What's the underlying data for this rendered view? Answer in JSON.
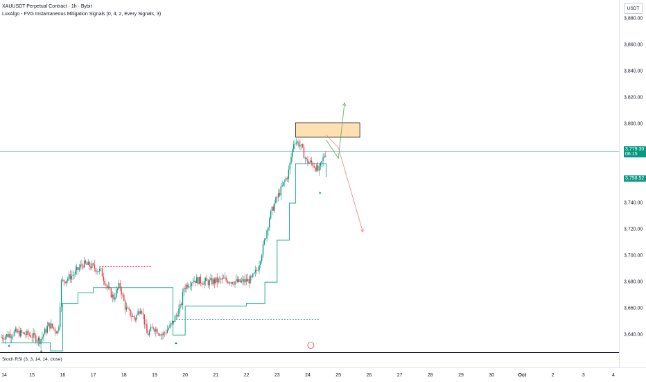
{
  "legend": {
    "symbol": "XAUUSDT Perpetual Contract · 1h · Bybit",
    "indicator": "LuxAlgo - FVG Instantaneous Mitigation Signals (0, 4, 2, Every Signals, 3)"
  },
  "currency": "USDT",
  "price_axis": {
    "labels": [
      {
        "text": "3,880.00",
        "value": 3880
      },
      {
        "text": "3,860.00",
        "value": 3860
      },
      {
        "text": "3,840.00",
        "value": 3840
      },
      {
        "text": "3,820.00",
        "value": 3820
      },
      {
        "text": "3,800.00",
        "value": 3800
      },
      {
        "text": "3,740.00",
        "value": 3740
      },
      {
        "text": "3,720.00",
        "value": 3720
      },
      {
        "text": "3,700.00",
        "value": 3700
      },
      {
        "text": "3,680.00",
        "value": 3680
      },
      {
        "text": "3,660.00",
        "value": 3660
      },
      {
        "text": "3,640.00",
        "value": 3640
      }
    ]
  },
  "current_price": {
    "price": "3,779.30",
    "countdown": "06:15",
    "value": 3779.3
  },
  "trail_price": {
    "price": "3,758.52",
    "value": 3758.52
  },
  "time_axis": [
    "14",
    "15",
    "16",
    "17",
    "18",
    "19",
    "20",
    "21",
    "22",
    "23",
    "24",
    "25",
    "26",
    "27",
    "28",
    "29",
    "30",
    "Oct",
    "2",
    "3",
    "4"
  ],
  "lower_pane": {
    "label": "Stoch RSI (3, 3, 14, 14, close)"
  },
  "colors": {
    "up": "#089981",
    "down": "#f23645",
    "zone": "#ffe0b2",
    "trail": "#22ab94"
  },
  "chart_data": {
    "type": "candlestick",
    "title": "XAUUSDT Perpetual Contract · 1h · Bybit",
    "xlabel": "",
    "ylabel": "",
    "ylim": [
      3627,
      3893
    ],
    "x_range_days": [
      14,
      34.2
    ],
    "candles_description": "hourly price path",
    "path": [
      {
        "day": 14.0,
        "price": 3638
      },
      {
        "day": 14.5,
        "price": 3642
      },
      {
        "day": 15.0,
        "price": 3640
      },
      {
        "day": 15.3,
        "price": 3636
      },
      {
        "day": 15.6,
        "price": 3648
      },
      {
        "day": 15.9,
        "price": 3642
      },
      {
        "day": 16.0,
        "price": 3680
      },
      {
        "day": 16.4,
        "price": 3686
      },
      {
        "day": 16.7,
        "price": 3694
      },
      {
        "day": 17.0,
        "price": 3692
      },
      {
        "day": 17.3,
        "price": 3688
      },
      {
        "day": 17.5,
        "price": 3676
      },
      {
        "day": 17.7,
        "price": 3668
      },
      {
        "day": 17.9,
        "price": 3678
      },
      {
        "day": 18.1,
        "price": 3660
      },
      {
        "day": 18.4,
        "price": 3652
      },
      {
        "day": 18.6,
        "price": 3662
      },
      {
        "day": 18.8,
        "price": 3640
      },
      {
        "day": 19.0,
        "price": 3646
      },
      {
        "day": 19.3,
        "price": 3640
      },
      {
        "day": 19.6,
        "price": 3648
      },
      {
        "day": 19.9,
        "price": 3662
      },
      {
        "day": 20.0,
        "price": 3676
      },
      {
        "day": 20.3,
        "price": 3682
      },
      {
        "day": 20.8,
        "price": 3680
      },
      {
        "day": 21.3,
        "price": 3682
      },
      {
        "day": 21.8,
        "price": 3680
      },
      {
        "day": 22.2,
        "price": 3682
      },
      {
        "day": 22.4,
        "price": 3690
      },
      {
        "day": 22.6,
        "price": 3708
      },
      {
        "day": 22.8,
        "price": 3730
      },
      {
        "day": 23.0,
        "price": 3742
      },
      {
        "day": 23.2,
        "price": 3752
      },
      {
        "day": 23.4,
        "price": 3762
      },
      {
        "day": 23.6,
        "price": 3788
      },
      {
        "day": 23.8,
        "price": 3784
      },
      {
        "day": 24.0,
        "price": 3772
      },
      {
        "day": 24.2,
        "price": 3770
      },
      {
        "day": 24.4,
        "price": 3764
      },
      {
        "day": 24.6,
        "price": 3778
      }
    ],
    "trailing_stop": [
      {
        "day": 14.0,
        "price": 3634
      },
      {
        "day": 15.3,
        "price": 3634
      },
      {
        "day": 15.6,
        "price": 3628
      },
      {
        "day": 16.0,
        "price": 3664
      },
      {
        "day": 16.5,
        "price": 3672
      },
      {
        "day": 17.0,
        "price": 3676
      },
      {
        "day": 17.6,
        "price": 3676
      },
      {
        "day": 19.6,
        "price": 3640
      },
      {
        "day": 20.0,
        "price": 3662
      },
      {
        "day": 22.0,
        "price": 3664
      },
      {
        "day": 22.6,
        "price": 3680
      },
      {
        "day": 23.0,
        "price": 3712
      },
      {
        "day": 23.4,
        "price": 3740
      },
      {
        "day": 23.6,
        "price": 3770
      },
      {
        "day": 24.6,
        "price": 3760
      }
    ],
    "supply_zone": {
      "day_start": 23.6,
      "day_end": 25.7,
      "price_low": 3790,
      "price_high": 3801
    },
    "red_dotted_level": {
      "day_start": 17.2,
      "day_end": 18.9,
      "price": 3692
    },
    "green_dotted_level": {
      "day_start": 19.7,
      "day_end": 24.4,
      "price": 3652
    },
    "horizontal_price_line": {
      "price": 3779.3
    },
    "projection_up": [
      {
        "day": 24.6,
        "price": 3788
      },
      {
        "day": 25.0,
        "price": 3774
      },
      {
        "day": 25.2,
        "price": 3816
      }
    ],
    "projection_down": [
      {
        "day": 24.6,
        "price": 3792
      },
      {
        "day": 25.0,
        "price": 3782
      },
      {
        "day": 25.8,
        "price": 3718
      }
    ]
  }
}
